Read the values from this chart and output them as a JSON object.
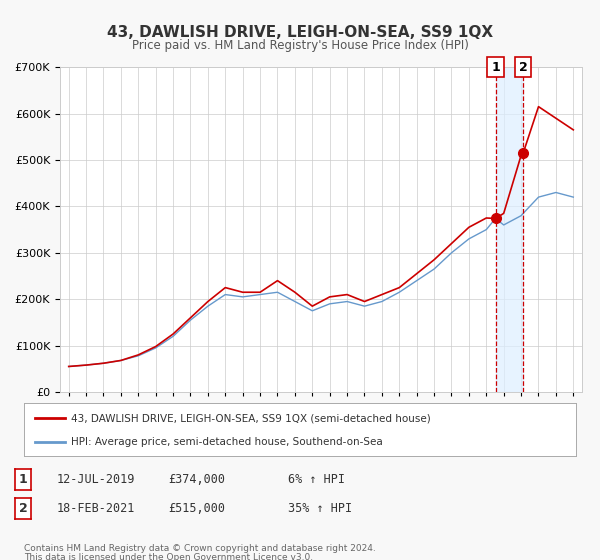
{
  "title": "43, DAWLISH DRIVE, LEIGH-ON-SEA, SS9 1QX",
  "subtitle": "Price paid vs. HM Land Registry's House Price Index (HPI)",
  "xlabel": "",
  "ylabel": "",
  "background_color": "#f8f8f8",
  "plot_bg_color": "#ffffff",
  "grid_color": "#cccccc",
  "legend1": "43, DAWLISH DRIVE, LEIGH-ON-SEA, SS9 1QX (semi-detached house)",
  "legend2": "HPI: Average price, semi-detached house, Southend-on-Sea",
  "sale1_date_num": 2019.53,
  "sale1_price": 374000,
  "sale1_label": "1",
  "sale2_date_num": 2021.12,
  "sale2_price": 515000,
  "sale2_label": "2",
  "table_rows": [
    {
      "num": "1",
      "date": "12-JUL-2019",
      "price": "£374,000",
      "change": "6% ↑ HPI"
    },
    {
      "num": "2",
      "date": "18-FEB-2021",
      "price": "£515,000",
      "change": "35% ↑ HPI"
    }
  ],
  "footnote1": "Contains HM Land Registry data © Crown copyright and database right 2024.",
  "footnote2": "This data is licensed under the Open Government Licence v3.0.",
  "red_line_color": "#cc0000",
  "blue_line_color": "#6699cc",
  "shade_color": "#ddeeff",
  "vline_color": "#cc0000",
  "ylim_max": 700000,
  "hpi_data": {
    "years": [
      1995,
      1996,
      1997,
      1998,
      1999,
      2000,
      2001,
      2002,
      2003,
      2004,
      2005,
      2006,
      2007,
      2008,
      2009,
      2010,
      2011,
      2012,
      2013,
      2014,
      2015,
      2016,
      2017,
      2018,
      2019,
      2019.53,
      2020,
      2021,
      2021.12,
      2022,
      2023,
      2024
    ],
    "hpi_values": [
      55000,
      58000,
      62000,
      68000,
      78000,
      95000,
      120000,
      155000,
      185000,
      210000,
      205000,
      210000,
      215000,
      195000,
      175000,
      190000,
      195000,
      185000,
      195000,
      215000,
      240000,
      265000,
      300000,
      330000,
      350000,
      374000,
      360000,
      380000,
      385000,
      420000,
      430000,
      420000
    ],
    "price_values": [
      55000,
      58000,
      62000,
      68000,
      80000,
      98000,
      125000,
      160000,
      195000,
      225000,
      215000,
      215000,
      240000,
      215000,
      185000,
      205000,
      210000,
      195000,
      210000,
      225000,
      255000,
      285000,
      320000,
      355000,
      375000,
      374000,
      385000,
      510000,
      515000,
      615000,
      590000,
      565000
    ]
  }
}
